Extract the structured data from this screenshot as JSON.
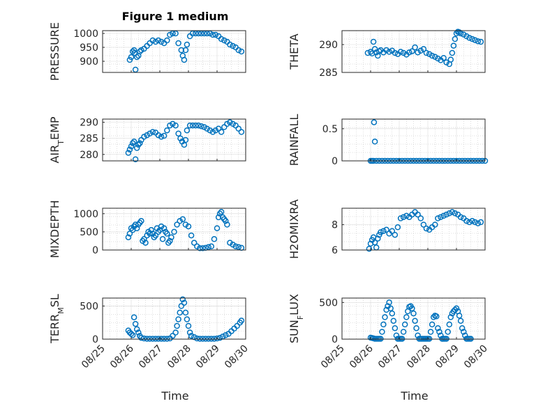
{
  "figure": {
    "title": "Figure 1 medium",
    "marker_color": "#0072bd",
    "x_axis": {
      "label": "Time",
      "ticks": [
        {
          "day": 25,
          "label": "08/25"
        },
        {
          "day": 26,
          "label": "08/26"
        },
        {
          "day": 27,
          "label": "08/27"
        },
        {
          "day": 28,
          "label": "08/28"
        },
        {
          "day": 29,
          "label": "08/29"
        },
        {
          "day": 30,
          "label": "08/30"
        }
      ],
      "range": [
        25,
        30
      ]
    }
  },
  "chart_data": [
    {
      "id": "pressure",
      "type": "scatter",
      "ylabel": "PRESSURE",
      "ylim": [
        860,
        1010
      ],
      "yticks": [
        900,
        950,
        1000
      ],
      "grid": true,
      "x": [
        25.95,
        26.0,
        26.05,
        26.1,
        26.12,
        26.15,
        26.2,
        26.25,
        26.3,
        26.35,
        26.45,
        26.55,
        26.65,
        26.75,
        26.85,
        26.95,
        27.05,
        27.15,
        27.25,
        27.35,
        27.45,
        27.55,
        27.65,
        27.75,
        27.8,
        27.85,
        27.9,
        27.95,
        28.05,
        28.15,
        28.25,
        28.35,
        28.45,
        28.55,
        28.65,
        28.75,
        28.85,
        28.95,
        29.05,
        29.15,
        29.25,
        29.35,
        29.45,
        29.55,
        29.65,
        29.75,
        29.85
      ],
      "y": [
        905,
        915,
        935,
        940,
        930,
        870,
        915,
        920,
        935,
        940,
        945,
        955,
        965,
        975,
        970,
        975,
        970,
        965,
        975,
        995,
        1000,
        1000,
        965,
        940,
        920,
        905,
        940,
        960,
        990,
        1000,
        1000,
        1000,
        1000,
        1000,
        1000,
        1000,
        995,
        995,
        990,
        980,
        975,
        970,
        960,
        955,
        950,
        940,
        935
      ]
    },
    {
      "id": "theta",
      "type": "scatter",
      "ylabel": "THETA",
      "ylim": [
        285,
        292.5
      ],
      "yticks": [
        285,
        290
      ],
      "grid": true,
      "x": [
        25.9,
        26.0,
        26.05,
        26.1,
        26.15,
        26.2,
        26.25,
        26.3,
        26.35,
        26.45,
        26.55,
        26.65,
        26.75,
        26.85,
        26.95,
        27.05,
        27.15,
        27.25,
        27.35,
        27.45,
        27.55,
        27.65,
        27.75,
        27.85,
        27.95,
        28.05,
        28.15,
        28.25,
        28.35,
        28.45,
        28.55,
        28.65,
        28.75,
        28.8,
        28.85,
        28.9,
        28.95,
        29.0,
        29.05,
        29.1,
        29.15,
        29.25,
        29.35,
        29.45,
        29.55,
        29.65,
        29.75,
        29.85
      ],
      "y": [
        288.5,
        288.7,
        288.4,
        290.5,
        289.2,
        288.6,
        288.0,
        288.8,
        289.0,
        288.6,
        289.0,
        288.7,
        288.9,
        288.5,
        288.3,
        288.7,
        288.5,
        288.2,
        288.6,
        288.8,
        289.5,
        288.6,
        288.9,
        289.2,
        288.5,
        288.3,
        288.0,
        287.8,
        287.5,
        287.2,
        287.6,
        286.8,
        286.5,
        287.3,
        288.5,
        289.8,
        291.0,
        292.0,
        292.3,
        292.2,
        292.0,
        291.8,
        291.5,
        291.2,
        291.0,
        290.8,
        290.6,
        290.5
      ]
    },
    {
      "id": "air_temp",
      "type": "scatter",
      "ylabel": "AIR_TEMP",
      "ylim": [
        278,
        291
      ],
      "yticks": [
        280,
        285,
        290
      ],
      "grid": true,
      "x": [
        25.9,
        25.95,
        26.0,
        26.05,
        26.1,
        26.15,
        26.2,
        26.25,
        26.3,
        26.35,
        26.45,
        26.55,
        26.65,
        26.75,
        26.85,
        26.95,
        27.05,
        27.15,
        27.25,
        27.35,
        27.45,
        27.55,
        27.65,
        27.72,
        27.78,
        27.85,
        27.9,
        27.95,
        28.05,
        28.15,
        28.25,
        28.35,
        28.45,
        28.55,
        28.65,
        28.75,
        28.85,
        28.95,
        29.05,
        29.15,
        29.25,
        29.35,
        29.45,
        29.55,
        29.65,
        29.75,
        29.85
      ],
      "y": [
        280.5,
        281.5,
        282.5,
        283.5,
        284.0,
        278.5,
        282.0,
        283.0,
        283.5,
        284.5,
        285.5,
        286.0,
        286.5,
        287.0,
        286.8,
        286.0,
        285.5,
        285.8,
        287.5,
        289.0,
        289.5,
        289.0,
        286.5,
        285.0,
        284.0,
        283.0,
        284.5,
        287.5,
        289.0,
        289.0,
        289.0,
        289.0,
        288.8,
        288.5,
        288.0,
        287.5,
        287.0,
        287.5,
        288.0,
        287.0,
        288.5,
        289.5,
        290.0,
        289.5,
        289.0,
        288.0,
        287.0
      ]
    },
    {
      "id": "rainfall",
      "type": "scatter",
      "ylabel": "RAINFALL",
      "ylim": [
        0,
        0.65
      ],
      "yticks": [
        0,
        0.5
      ],
      "ytick_labels": [
        "0",
        "0.5"
      ],
      "grid": true,
      "x": [
        26.0,
        26.05,
        26.1,
        26.12,
        26.15,
        26.2,
        26.3,
        26.4,
        26.5,
        26.6,
        26.7,
        26.8,
        26.9,
        27.0,
        27.1,
        27.2,
        27.3,
        27.4,
        27.5,
        27.6,
        27.7,
        27.8,
        27.9,
        28.0,
        28.1,
        28.2,
        28.3,
        28.4,
        28.5,
        28.6,
        28.7,
        28.8,
        28.9,
        29.0,
        29.1,
        29.2,
        29.3,
        29.4,
        29.5,
        29.6,
        29.7,
        29.8,
        29.9,
        30.0
      ],
      "y": [
        0,
        0,
        0,
        0.6,
        0.3,
        0,
        0,
        0,
        0,
        0,
        0,
        0,
        0,
        0,
        0,
        0,
        0,
        0,
        0,
        0,
        0,
        0,
        0,
        0,
        0,
        0,
        0,
        0,
        0,
        0,
        0,
        0,
        0,
        0,
        0,
        0,
        0,
        0,
        0,
        0,
        0,
        0,
        0,
        0
      ]
    },
    {
      "id": "mixdepth",
      "type": "scatter",
      "ylabel": "MIXDEPTH",
      "ylim": [
        0,
        1150
      ],
      "yticks": [
        0,
        500,
        1000
      ],
      "grid": true,
      "x": [
        25.9,
        25.95,
        26.0,
        26.05,
        26.1,
        26.15,
        26.2,
        26.25,
        26.3,
        26.35,
        26.4,
        26.45,
        26.5,
        26.55,
        26.6,
        26.65,
        26.7,
        26.75,
        26.8,
        26.85,
        26.9,
        26.95,
        27.0,
        27.05,
        27.1,
        27.15,
        27.2,
        27.25,
        27.3,
        27.35,
        27.4,
        27.5,
        27.6,
        27.7,
        27.8,
        27.9,
        28.0,
        28.1,
        28.2,
        28.3,
        28.4,
        28.5,
        28.6,
        28.7,
        28.8,
        28.9,
        29.0,
        29.05,
        29.1,
        29.15,
        29.2,
        29.25,
        29.3,
        29.35,
        29.45,
        29.55,
        29.65,
        29.75,
        29.85
      ],
      "y": [
        350,
        450,
        600,
        550,
        650,
        700,
        600,
        700,
        750,
        800,
        250,
        300,
        200,
        400,
        500,
        450,
        550,
        450,
        350,
        400,
        600,
        500,
        550,
        650,
        300,
        600,
        500,
        450,
        200,
        250,
        350,
        500,
        700,
        800,
        850,
        700,
        650,
        400,
        200,
        100,
        50,
        50,
        60,
        80,
        100,
        300,
        600,
        900,
        1000,
        1050,
        900,
        850,
        800,
        700,
        200,
        150,
        100,
        80,
        60
      ]
    },
    {
      "id": "h2omixra",
      "type": "scatter",
      "ylabel": "H2OMIXRA",
      "ylim": [
        6,
        9.3
      ],
      "yticks": [
        6,
        8
      ],
      "grid": true,
      "x": [
        25.95,
        26.0,
        26.05,
        26.1,
        26.15,
        26.2,
        26.25,
        26.3,
        26.35,
        26.45,
        26.55,
        26.65,
        26.75,
        26.85,
        26.95,
        27.05,
        27.15,
        27.25,
        27.35,
        27.45,
        27.55,
        27.65,
        27.75,
        27.85,
        27.95,
        28.05,
        28.15,
        28.25,
        28.35,
        28.45,
        28.55,
        28.65,
        28.75,
        28.85,
        28.95,
        29.05,
        29.15,
        29.25,
        29.35,
        29.45,
        29.55,
        29.65,
        29.75,
        29.85
      ],
      "y": [
        6.1,
        6.5,
        6.8,
        7.0,
        6.6,
        6.2,
        6.9,
        7.2,
        7.4,
        7.5,
        7.6,
        7.3,
        7.5,
        7.2,
        7.8,
        8.5,
        8.6,
        8.7,
        8.6,
        8.8,
        9.0,
        8.8,
        8.5,
        8.0,
        7.7,
        7.6,
        7.8,
        8.0,
        8.5,
        8.6,
        8.7,
        8.8,
        8.9,
        9.0,
        8.9,
        8.8,
        8.6,
        8.5,
        8.3,
        8.2,
        8.3,
        8.2,
        8.1,
        8.2
      ]
    },
    {
      "id": "terr_msl",
      "type": "scatter",
      "ylabel": "TERR_MSL",
      "ylim": [
        0,
        620
      ],
      "yticks": [
        0,
        500
      ],
      "grid": true,
      "x": [
        25.9,
        25.95,
        26.0,
        26.05,
        26.1,
        26.15,
        26.2,
        26.25,
        26.3,
        26.35,
        26.45,
        26.55,
        26.65,
        26.75,
        26.85,
        26.95,
        27.05,
        27.15,
        27.25,
        27.35,
        27.45,
        27.55,
        27.6,
        27.65,
        27.7,
        27.75,
        27.8,
        27.85,
        27.9,
        27.95,
        28.0,
        28.05,
        28.1,
        28.2,
        28.3,
        28.4,
        28.5,
        28.6,
        28.7,
        28.8,
        28.9,
        29.0,
        29.1,
        29.2,
        29.3,
        29.4,
        29.5,
        29.6,
        29.7,
        29.8,
        29.85
      ],
      "y": [
        130,
        100,
        80,
        60,
        330,
        230,
        150,
        100,
        50,
        20,
        10,
        5,
        5,
        5,
        5,
        5,
        5,
        5,
        5,
        10,
        50,
        100,
        200,
        300,
        400,
        500,
        600,
        550,
        400,
        300,
        200,
        100,
        50,
        30,
        10,
        5,
        5,
        5,
        5,
        5,
        5,
        10,
        20,
        40,
        60,
        80,
        120,
        160,
        200,
        250,
        280
      ]
    },
    {
      "id": "sun_flux",
      "type": "scatter",
      "ylabel": "SUN_FLUX",
      "ylim": [
        0,
        560
      ],
      "yticks": [
        0,
        500
      ],
      "grid": true,
      "x": [
        26.0,
        26.05,
        26.1,
        26.15,
        26.2,
        26.25,
        26.3,
        26.35,
        26.4,
        26.45,
        26.5,
        26.55,
        26.6,
        26.65,
        26.7,
        26.75,
        26.8,
        26.85,
        26.9,
        26.95,
        27.0,
        27.05,
        27.1,
        27.15,
        27.2,
        27.25,
        27.3,
        27.35,
        27.4,
        27.45,
        27.5,
        27.55,
        27.6,
        27.65,
        27.7,
        27.75,
        27.8,
        27.85,
        27.9,
        27.95,
        28.0,
        28.05,
        28.1,
        28.15,
        28.2,
        28.25,
        28.3,
        28.35,
        28.4,
        28.45,
        28.5,
        28.55,
        28.6,
        28.65,
        28.7,
        28.75,
        28.8,
        28.85,
        28.9,
        28.95,
        29.0,
        29.05,
        29.1,
        29.15,
        29.2,
        29.25,
        29.3,
        29.35,
        29.4,
        29.45,
        29.5
      ],
      "y": [
        20,
        15,
        10,
        5,
        5,
        5,
        5,
        5,
        100,
        200,
        300,
        400,
        450,
        500,
        420,
        350,
        250,
        150,
        50,
        5,
        5,
        5,
        5,
        100,
        200,
        300,
        380,
        440,
        450,
        420,
        350,
        250,
        150,
        50,
        5,
        5,
        5,
        5,
        5,
        5,
        5,
        5,
        100,
        200,
        300,
        320,
        310,
        150,
        100,
        50,
        5,
        5,
        5,
        5,
        100,
        200,
        300,
        350,
        380,
        400,
        420,
        380,
        320,
        250,
        150,
        100,
        50,
        5,
        5,
        5,
        5
      ]
    }
  ]
}
